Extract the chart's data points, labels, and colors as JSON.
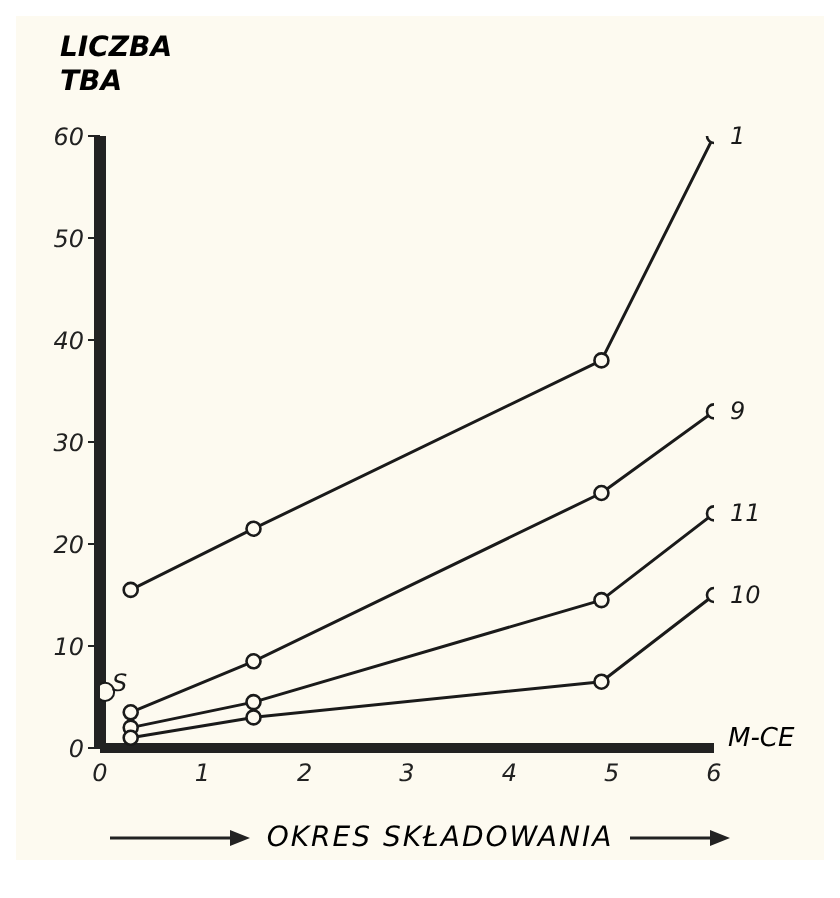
{
  "chart_data": {
    "type": "line",
    "ylabel": "LICZBA TBA",
    "xlabel": "OKRES SKŁADOWANIA",
    "annotations": [
      "M-CE"
    ],
    "xlim": [
      0,
      6
    ],
    "xticks": [
      0,
      1,
      2,
      3,
      4,
      5,
      6
    ],
    "ylim": [
      0,
      60
    ],
    "yticks": [
      0,
      10,
      20,
      30,
      40,
      50,
      60
    ],
    "grid": false,
    "legend": false,
    "marker": "circle",
    "line_style": "solid",
    "series": [
      {
        "name": "1",
        "color": "#1a1a1a",
        "x": [
          0.3,
          1.5,
          4.9,
          6
        ],
        "values": [
          15.5,
          21.5,
          38,
          60
        ]
      },
      {
        "name": "9",
        "color": "#1a1a1a",
        "x": [
          0.3,
          1.5,
          4.9,
          6
        ],
        "values": [
          3.5,
          8.5,
          25,
          33
        ]
      },
      {
        "name": "11",
        "color": "#1a1a1a",
        "x": [
          0.3,
          1.5,
          4.9,
          6
        ],
        "values": [
          2,
          4.5,
          14.5,
          23
        ]
      },
      {
        "name": "10",
        "color": "#1a1a1a",
        "x": [
          0.3,
          1.5,
          4.9,
          6
        ],
        "values": [
          1,
          3,
          6.5,
          15
        ]
      },
      {
        "name": "S",
        "type": "scatter",
        "color": "#1a1a1a",
        "x": [
          0.05
        ],
        "values": [
          5.5
        ]
      }
    ]
  }
}
